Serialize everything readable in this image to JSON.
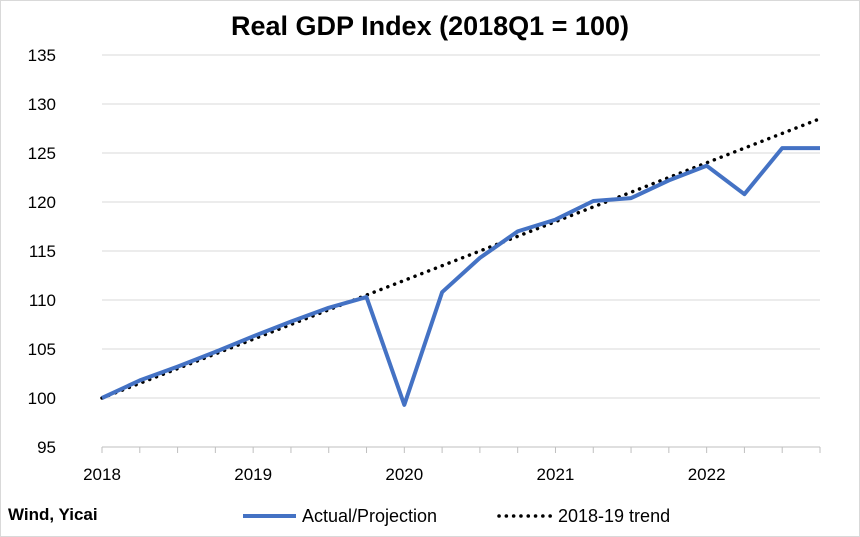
{
  "chart_data": {
    "type": "line",
    "title": "Real GDP Index (2018Q1 = 100)",
    "source": "Wind, Yicai",
    "x_tick_labels": [
      "2018",
      "2019",
      "2020",
      "2021",
      "2022"
    ],
    "x": [
      "2018Q1",
      "2018Q2",
      "2018Q3",
      "2018Q4",
      "2019Q1",
      "2019Q2",
      "2019Q3",
      "2019Q4",
      "2020Q1",
      "2020Q2",
      "2020Q3",
      "2020Q4",
      "2021Q1",
      "2021Q2",
      "2021Q3",
      "2021Q4",
      "2022Q1",
      "2022Q2",
      "2022Q3",
      "2022Q4"
    ],
    "ylim": [
      95,
      135
    ],
    "yticks": [
      95,
      100,
      105,
      110,
      115,
      120,
      125,
      130,
      135
    ],
    "grid": true,
    "legend_position": "bottom",
    "series": [
      {
        "name": "Actual/Projection",
        "color": "#4472c4",
        "style": "solid",
        "values": [
          100.0,
          101.8,
          103.2,
          104.7,
          106.3,
          107.8,
          109.2,
          110.3,
          99.3,
          110.8,
          114.3,
          117.0,
          118.2,
          120.1,
          120.4,
          122.2,
          123.7,
          120.8,
          125.5,
          125.5
        ]
      },
      {
        "name": "2018-19 trend",
        "color": "#000000",
        "style": "dotted",
        "values": [
          100.0,
          101.5,
          103.0,
          104.5,
          106.0,
          107.5,
          109.0,
          110.5,
          112.0,
          113.5,
          115.0,
          116.5,
          118.0,
          119.5,
          121.0,
          122.5,
          124.0,
          125.5,
          127.0,
          128.5
        ]
      }
    ]
  }
}
